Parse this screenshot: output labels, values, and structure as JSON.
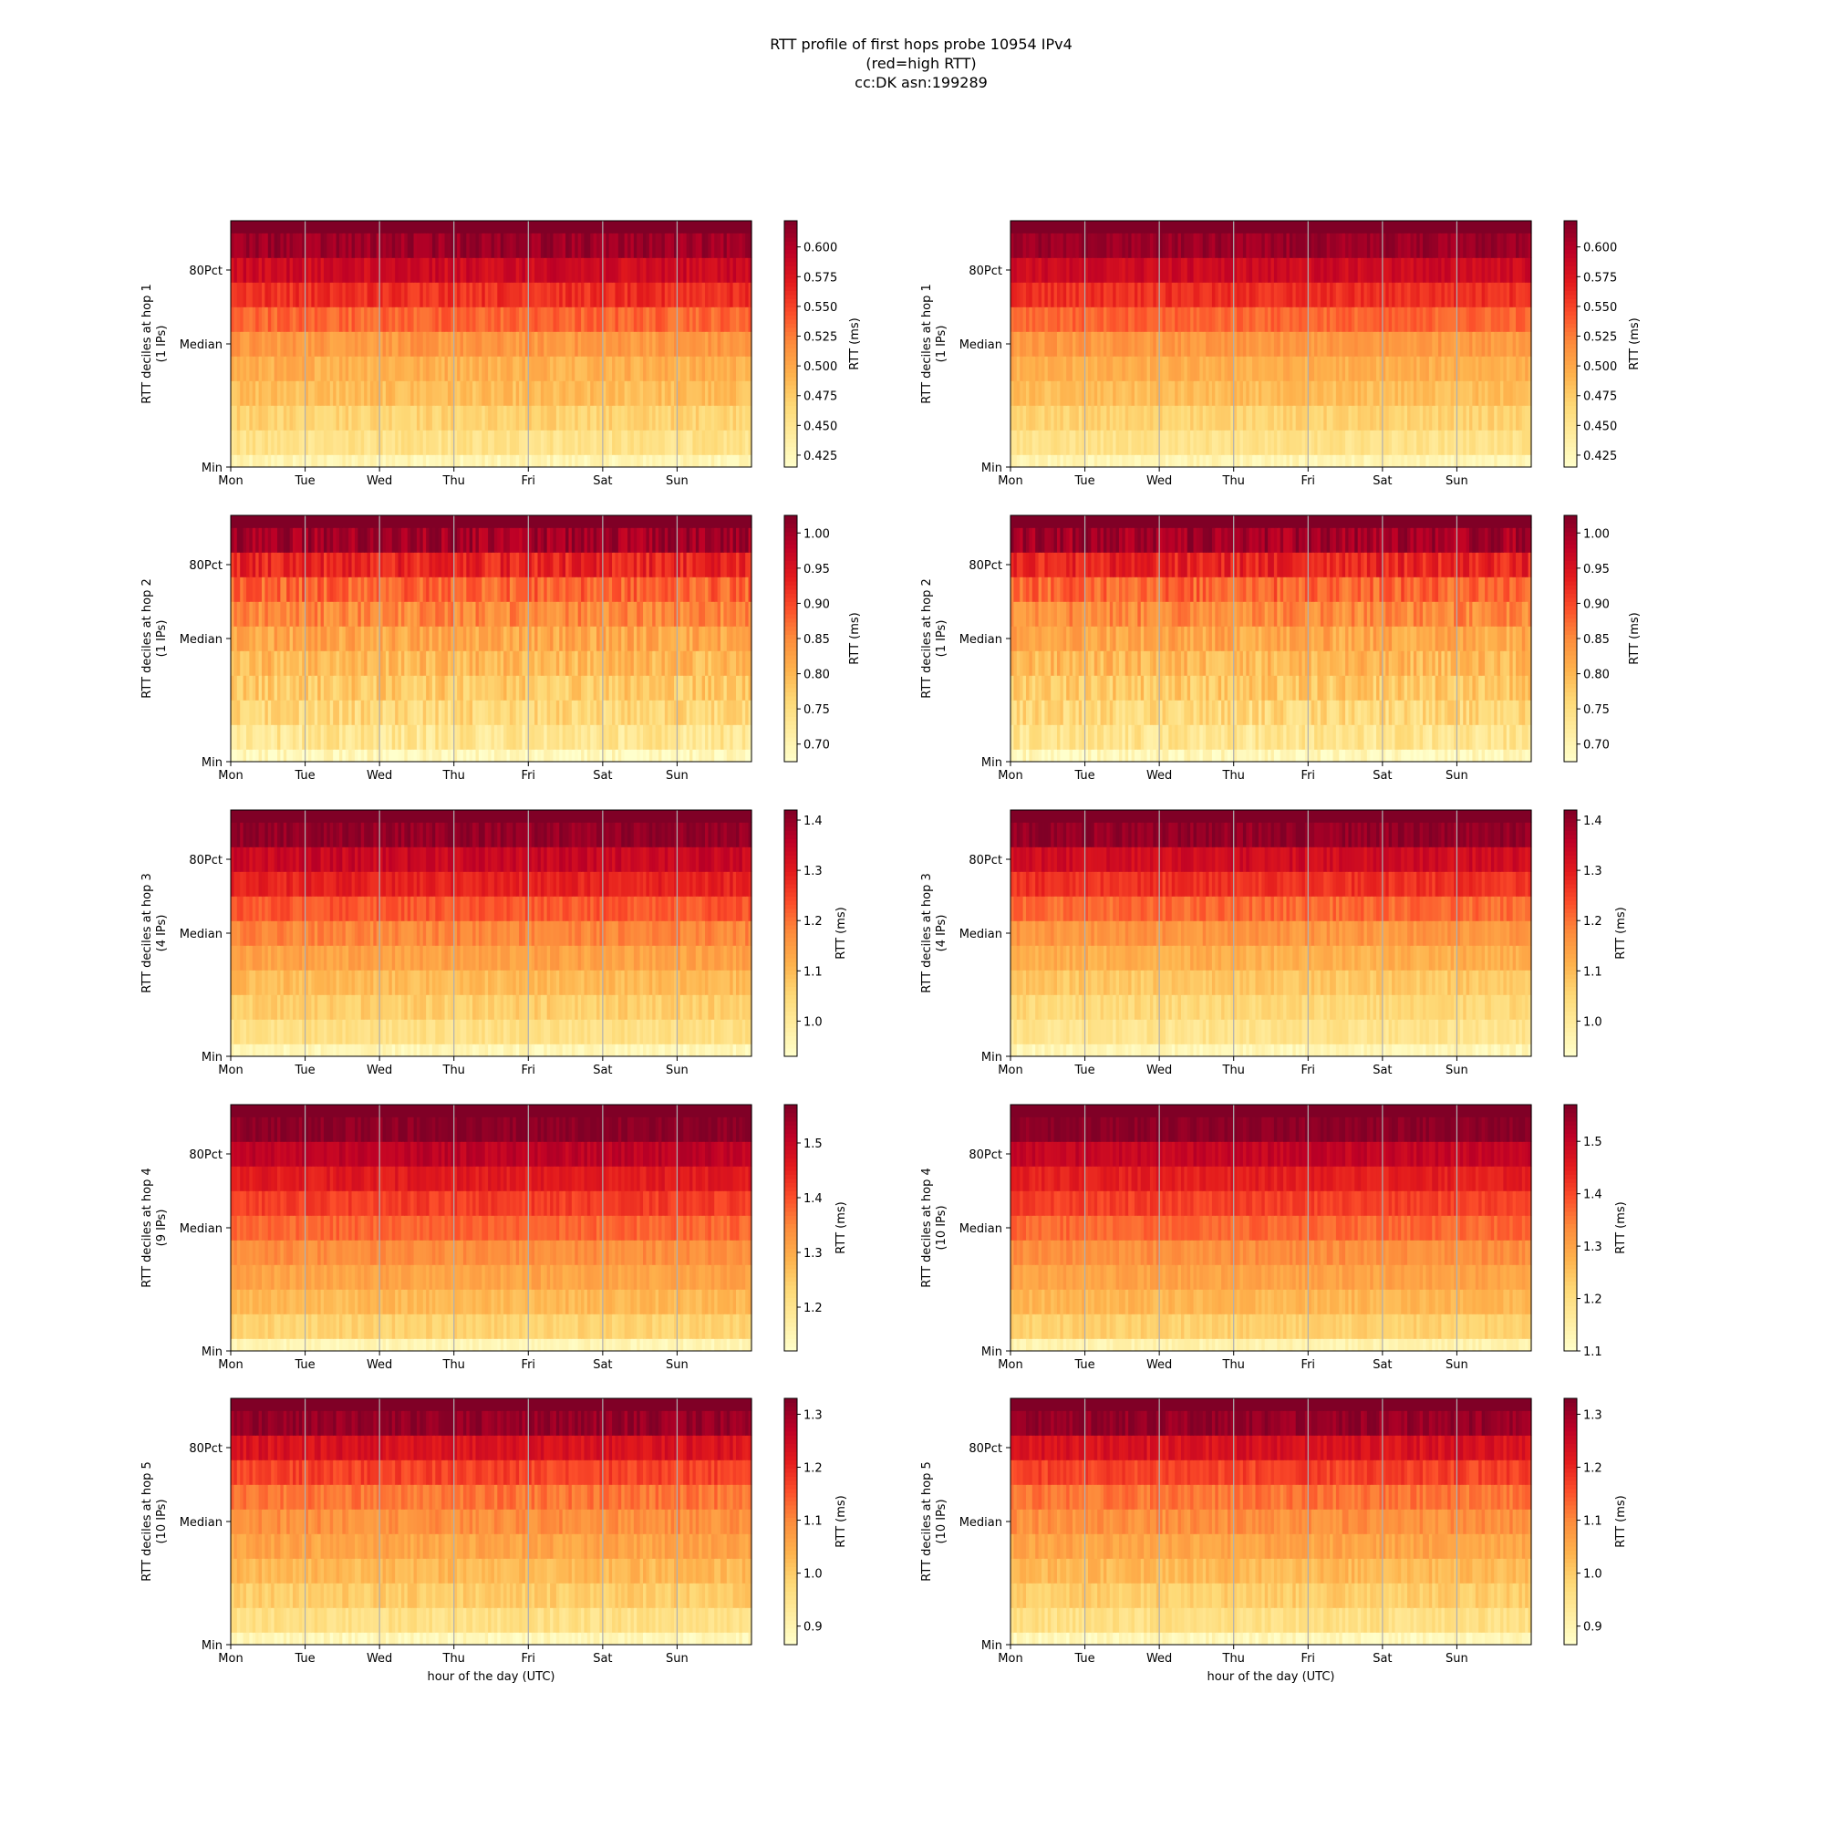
{
  "title": [
    "RTT profile of first hops probe 10954 IPv4",
    "(red=high RTT)",
    "cc:DK asn:199289"
  ],
  "chart_data": {
    "type": "heatmap",
    "x_tick_labels": [
      "Mon",
      "Tue",
      "Wed",
      "Thu",
      "Fri",
      "Sat",
      "Sun"
    ],
    "y_tick_labels": [
      "Min",
      "Median",
      "80Pct"
    ],
    "xlabel": "hour of the day (UTC)",
    "colorbar_label": "RTT (ms)",
    "colormap": [
      "#ffffcc",
      "#ffeda0",
      "#fed976",
      "#feb24c",
      "#fd8d3c",
      "#fc4e2a",
      "#e31a1c",
      "#bd0026",
      "#800026"
    ],
    "deciles": 11,
    "panels": [
      {
        "hop": 1,
        "ylabel": "RTT deciles at hop 1",
        "ips": "(1 IPs)",
        "cbar_ticks": [
          0.425,
          0.45,
          0.475,
          0.5,
          0.525,
          0.55,
          0.575,
          0.6
        ],
        "cbar_labels": [
          "0.425",
          "0.450",
          "0.475",
          "0.500",
          "0.525",
          "0.550",
          "0.575",
          "0.600"
        ],
        "vmin": 0.415,
        "vmax": 0.622,
        "profile": [
          0.43,
          0.455,
          0.47,
          0.485,
          0.495,
          0.51,
          0.535,
          0.56,
          0.585,
          0.61,
          0.64
        ],
        "noise": 0.012
      },
      {
        "hop": 1,
        "ylabel": "RTT deciles at hop 1",
        "ips": "(1 IPs)",
        "cbar_ticks": [
          0.425,
          0.45,
          0.475,
          0.5,
          0.525,
          0.55,
          0.575,
          0.6
        ],
        "cbar_labels": [
          "0.425",
          "0.450",
          "0.475",
          "0.500",
          "0.525",
          "0.550",
          "0.575",
          "0.600"
        ],
        "vmin": 0.415,
        "vmax": 0.622,
        "profile": [
          0.43,
          0.455,
          0.47,
          0.485,
          0.495,
          0.51,
          0.535,
          0.56,
          0.585,
          0.61,
          0.64
        ],
        "noise": 0.01
      },
      {
        "hop": 2,
        "ylabel": "RTT deciles at hop 2",
        "ips": "(1 IPs)",
        "cbar_ticks": [
          0.7,
          0.75,
          0.8,
          0.85,
          0.9,
          0.95,
          1.0
        ],
        "cbar_labels": [
          "0.70",
          "0.75",
          "0.80",
          "0.85",
          "0.90",
          "0.95",
          "1.00"
        ],
        "vmin": 0.675,
        "vmax": 1.025,
        "profile": [
          0.69,
          0.735,
          0.76,
          0.78,
          0.8,
          0.82,
          0.85,
          0.88,
          0.93,
          1.0,
          1.1
        ],
        "noise": 0.03
      },
      {
        "hop": 2,
        "ylabel": "RTT deciles at hop 2",
        "ips": "(1 IPs)",
        "cbar_ticks": [
          0.7,
          0.75,
          0.8,
          0.85,
          0.9,
          0.95,
          1.0
        ],
        "cbar_labels": [
          "0.70",
          "0.75",
          "0.80",
          "0.85",
          "0.90",
          "0.95",
          "1.00"
        ],
        "vmin": 0.675,
        "vmax": 1.025,
        "profile": [
          0.69,
          0.735,
          0.76,
          0.78,
          0.8,
          0.82,
          0.85,
          0.88,
          0.93,
          1.0,
          1.1
        ],
        "noise": 0.03
      },
      {
        "hop": 3,
        "ylabel": "RTT deciles at hop 3",
        "ips": "(4 IPs)",
        "cbar_ticks": [
          1.0,
          1.1,
          1.2,
          1.3,
          1.4
        ],
        "cbar_labels": [
          "1.0",
          "1.1",
          "1.2",
          "1.3",
          "1.4"
        ],
        "vmin": 0.93,
        "vmax": 1.42,
        "profile": [
          0.96,
          1.03,
          1.07,
          1.1,
          1.14,
          1.18,
          1.23,
          1.29,
          1.34,
          1.4,
          1.5
        ],
        "noise": 0.025
      },
      {
        "hop": 3,
        "ylabel": "RTT deciles at hop 3",
        "ips": "(4 IPs)",
        "cbar_ticks": [
          1.0,
          1.1,
          1.2,
          1.3,
          1.4
        ],
        "cbar_labels": [
          "1.0",
          "1.1",
          "1.2",
          "1.3",
          "1.4"
        ],
        "vmin": 0.93,
        "vmax": 1.42,
        "profile": [
          0.96,
          1.02,
          1.05,
          1.08,
          1.12,
          1.16,
          1.21,
          1.27,
          1.33,
          1.4,
          1.5
        ],
        "noise": 0.025
      },
      {
        "hop": 4,
        "ylabel": "RTT deciles at hop 4",
        "ips": "(9 IPs)",
        "cbar_ticks": [
          1.2,
          1.3,
          1.4,
          1.5
        ],
        "cbar_labels": [
          "1.2",
          "1.3",
          "1.4",
          "1.5"
        ],
        "vmin": 1.12,
        "vmax": 1.57,
        "profile": [
          1.15,
          1.24,
          1.28,
          1.31,
          1.34,
          1.38,
          1.42,
          1.46,
          1.51,
          1.56,
          1.62
        ],
        "noise": 0.02
      },
      {
        "hop": 4,
        "ylabel": "RTT deciles at hop 4",
        "ips": "(10 IPs)",
        "cbar_ticks": [
          1.1,
          1.2,
          1.3,
          1.4,
          1.5
        ],
        "cbar_labels": [
          "1.1",
          "1.2",
          "1.3",
          "1.4",
          "1.5"
        ],
        "vmin": 1.1,
        "vmax": 1.57,
        "profile": [
          1.14,
          1.23,
          1.27,
          1.3,
          1.33,
          1.37,
          1.41,
          1.45,
          1.5,
          1.56,
          1.62
        ],
        "noise": 0.02
      },
      {
        "hop": 5,
        "ylabel": "RTT deciles at hop 5",
        "ips": "(10 IPs)",
        "cbar_ticks": [
          0.9,
          1.0,
          1.1,
          1.2,
          1.3
        ],
        "cbar_labels": [
          "0.9",
          "1.0",
          "1.1",
          "1.2",
          "1.3"
        ],
        "vmin": 0.865,
        "vmax": 1.33,
        "profile": [
          0.89,
          0.96,
          1.0,
          1.03,
          1.06,
          1.09,
          1.12,
          1.17,
          1.23,
          1.31,
          1.4
        ],
        "noise": 0.025
      },
      {
        "hop": 5,
        "ylabel": "RTT deciles at hop 5",
        "ips": "(10 IPs)",
        "cbar_ticks": [
          0.9,
          1.0,
          1.1,
          1.2,
          1.3
        ],
        "cbar_labels": [
          "0.9",
          "1.0",
          "1.1",
          "1.2",
          "1.3"
        ],
        "vmin": 0.865,
        "vmax": 1.33,
        "profile": [
          0.89,
          0.96,
          1.0,
          1.03,
          1.06,
          1.09,
          1.12,
          1.17,
          1.23,
          1.31,
          1.4
        ],
        "noise": 0.025
      }
    ]
  }
}
